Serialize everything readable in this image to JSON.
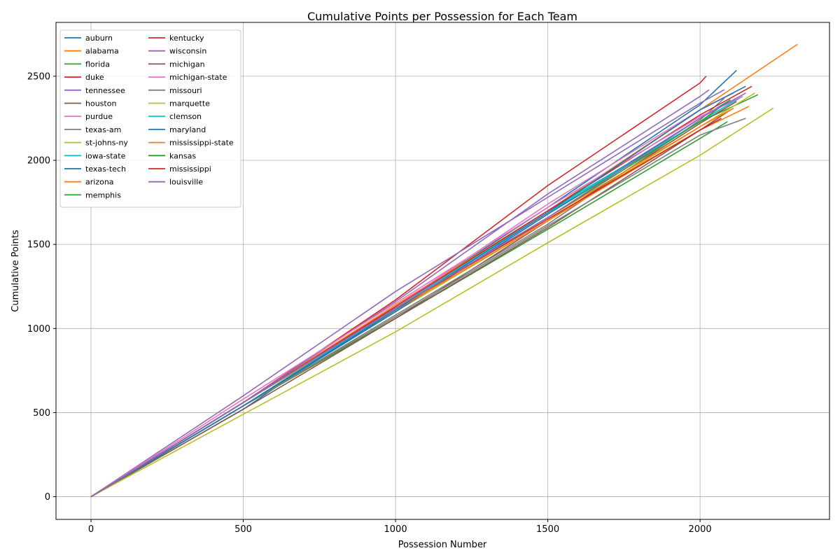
{
  "chart_data": {
    "type": "line",
    "title": "Cumulative Points per Possession for Each Team",
    "xlabel": "Possession Number",
    "ylabel": "Cumulative Points",
    "xlim": [
      -115,
      2425
    ],
    "ylim": [
      -135,
      2820
    ],
    "xticks": [
      0,
      500,
      1000,
      1500,
      2000
    ],
    "yticks": [
      0,
      500,
      1000,
      1500,
      2000,
      2500
    ],
    "grid": true,
    "legend_position": "top-left",
    "legend_columns": 2,
    "series": [
      {
        "name": "auburn",
        "color": "#1f77b4",
        "x": [
          0,
          500,
          1000,
          1500,
          2000,
          2120
        ],
        "y": [
          0,
          520,
          1130,
          1720,
          2330,
          2535
        ]
      },
      {
        "name": "alabama",
        "color": "#ff7f0e",
        "x": [
          0,
          500,
          1000,
          1500,
          2000,
          2320
        ],
        "y": [
          0,
          560,
          1140,
          1700,
          2300,
          2690
        ]
      },
      {
        "name": "florida",
        "color": "#2ca02c",
        "x": [
          0,
          500,
          1000,
          1500,
          2000,
          2190
        ],
        "y": [
          0,
          540,
          1100,
          1680,
          2230,
          2390
        ]
      },
      {
        "name": "duke",
        "color": "#d62728",
        "x": [
          0,
          500,
          1000,
          1500,
          2000,
          2020
        ],
        "y": [
          0,
          560,
          1170,
          1850,
          2460,
          2500
        ]
      },
      {
        "name": "tennessee",
        "color": "#9467bd",
        "x": [
          0,
          500,
          1000,
          1500,
          2000,
          2080
        ],
        "y": [
          0,
          600,
          1220,
          1780,
          2340,
          2420
        ]
      },
      {
        "name": "houston",
        "color": "#8c564b",
        "x": [
          0,
          500,
          1000,
          1500,
          2000,
          2120
        ],
        "y": [
          0,
          540,
          1060,
          1640,
          2220,
          2350
        ]
      },
      {
        "name": "purdue",
        "color": "#e377c2",
        "x": [
          0,
          500,
          1000,
          1500,
          2000,
          2110
        ],
        "y": [
          0,
          560,
          1130,
          1740,
          2300,
          2400
        ]
      },
      {
        "name": "texas-am",
        "color": "#7f7f7f",
        "x": [
          0,
          500,
          1000,
          1500,
          2000,
          2080
        ],
        "y": [
          0,
          540,
          1080,
          1620,
          2240,
          2370
        ]
      },
      {
        "name": "st-johns-ny",
        "color": "#bcbd22",
        "x": [
          0,
          500,
          1000,
          1500,
          2000,
          2180
        ],
        "y": [
          0,
          560,
          1100,
          1640,
          2200,
          2400
        ]
      },
      {
        "name": "iowa-state",
        "color": "#17becf",
        "x": [
          0,
          500,
          1000,
          1500,
          2000,
          2140
        ],
        "y": [
          0,
          560,
          1120,
          1700,
          2230,
          2380
        ]
      },
      {
        "name": "texas-tech",
        "color": "#1f77b4",
        "x": [
          0,
          500,
          1000,
          1500,
          2000,
          2100
        ],
        "y": [
          0,
          540,
          1100,
          1680,
          2250,
          2360
        ]
      },
      {
        "name": "arizona",
        "color": "#ff7f0e",
        "x": [
          0,
          500,
          1000,
          1500,
          2000,
          2160
        ],
        "y": [
          0,
          560,
          1110,
          1640,
          2180,
          2320
        ]
      },
      {
        "name": "memphis",
        "color": "#2ca02c",
        "x": [
          0,
          500,
          1000,
          1500,
          2000,
          2090
        ],
        "y": [
          0,
          540,
          1060,
          1590,
          2130,
          2230
        ]
      },
      {
        "name": "kentucky",
        "color": "#d62728",
        "x": [
          0,
          500,
          1000,
          1500,
          2000,
          2170
        ],
        "y": [
          0,
          560,
          1130,
          1700,
          2270,
          2440
        ]
      },
      {
        "name": "wisconsin",
        "color": "#9467bd",
        "x": [
          0,
          500,
          1000,
          1500,
          2000,
          2030
        ],
        "y": [
          0,
          560,
          1160,
          1800,
          2380,
          2420
        ]
      },
      {
        "name": "michigan",
        "color": "#8c564b",
        "x": [
          0,
          500,
          1000,
          1500,
          2000,
          2100
        ],
        "y": [
          0,
          520,
          1060,
          1600,
          2180,
          2300
        ]
      },
      {
        "name": "michigan-state",
        "color": "#e377c2",
        "x": [
          0,
          500,
          1000,
          1500,
          2000,
          2140
        ],
        "y": [
          0,
          580,
          1150,
          1720,
          2260,
          2380
        ]
      },
      {
        "name": "missouri",
        "color": "#7f7f7f",
        "x": [
          0,
          500,
          1000,
          1500,
          2000,
          2150
        ],
        "y": [
          0,
          540,
          1070,
          1610,
          2150,
          2250
        ]
      },
      {
        "name": "marquette",
        "color": "#bcbd22",
        "x": [
          0,
          500,
          1000,
          1500,
          2000,
          2240
        ],
        "y": [
          0,
          490,
          980,
          1510,
          2030,
          2310
        ]
      },
      {
        "name": "clemson",
        "color": "#17becf",
        "x": [
          0,
          500,
          1000,
          1500,
          2000,
          2110
        ],
        "y": [
          0,
          540,
          1120,
          1690,
          2230,
          2350
        ]
      },
      {
        "name": "maryland",
        "color": "#1f77b4",
        "x": [
          0,
          500,
          1000,
          1500,
          2000,
          2150
        ],
        "y": [
          0,
          540,
          1110,
          1690,
          2300,
          2440
        ]
      },
      {
        "name": "mississippi-state",
        "color": "#ff7f0e",
        "x": [
          0,
          500,
          1000,
          1500,
          2000,
          2110
        ],
        "y": [
          0,
          560,
          1120,
          1660,
          2200,
          2310
        ]
      },
      {
        "name": "kansas",
        "color": "#2ca02c",
        "x": [
          0,
          500,
          1000,
          1500,
          2000,
          2100
        ],
        "y": [
          0,
          560,
          1120,
          1660,
          2230,
          2360
        ]
      },
      {
        "name": "mississippi",
        "color": "#d62728",
        "x": [
          0,
          500,
          1000,
          1500,
          2000,
          2070
        ],
        "y": [
          0,
          560,
          1120,
          1650,
          2180,
          2250
        ]
      },
      {
        "name": "louisville",
        "color": "#9467bd",
        "x": [
          0,
          500,
          1000,
          1500,
          2000,
          2150
        ],
        "y": [
          0,
          560,
          1120,
          1660,
          2250,
          2400
        ]
      }
    ]
  }
}
